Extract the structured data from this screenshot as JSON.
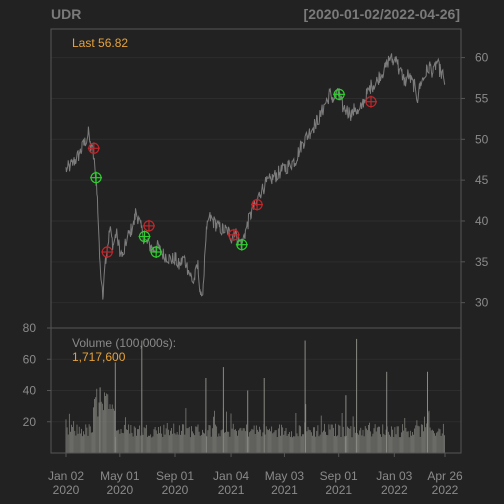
{
  "header": {
    "symbol": "UDR",
    "date_range": "[2020-01-02/2022-04-26]"
  },
  "chart_data": {
    "type": "line",
    "symbol": "UDR",
    "date_range": "[2020-01-02/2022-04-26]",
    "last_label": "Last 56.82",
    "price_axis": {
      "ticks": [
        30,
        35,
        40,
        45,
        50,
        55,
        60
      ],
      "ylim": [
        26.9,
        63.5
      ],
      "side": "right"
    },
    "x_axis": {
      "range": [
        "2020-01-02",
        "2022-04-26"
      ],
      "ticks": [
        {
          "date": "2020-01-02",
          "line1": "Jan 02",
          "line2": "2020"
        },
        {
          "date": "2020-05-01",
          "line1": "May 01",
          "line2": "2020"
        },
        {
          "date": "2020-09-01",
          "line1": "Sep 01",
          "line2": "2020"
        },
        {
          "date": "2021-01-04",
          "line1": "Jan 04",
          "line2": "2021"
        },
        {
          "date": "2021-05-03",
          "line1": "May 03",
          "line2": "2021"
        },
        {
          "date": "2021-09-01",
          "line1": "Sep 01",
          "line2": "2021"
        },
        {
          "date": "2022-01-03",
          "line1": "Jan 03",
          "line2": "2022"
        },
        {
          "date": "2022-04-26",
          "line1": "Apr 26",
          "line2": "2022"
        }
      ]
    },
    "price_series": [
      [
        "2020-01-02",
        46.3
      ],
      [
        "2020-01-15",
        46.9
      ],
      [
        "2020-02-01",
        48.2
      ],
      [
        "2020-02-12",
        49.5
      ],
      [
        "2020-02-21",
        50.7
      ],
      [
        "2020-02-26",
        49.0
      ],
      [
        "2020-03-02",
        48.5
      ],
      [
        "2020-03-06",
        46.5
      ],
      [
        "2020-03-11",
        44.0
      ],
      [
        "2020-03-16",
        37.0
      ],
      [
        "2020-03-20",
        33.0
      ],
      [
        "2020-03-24",
        30.5
      ],
      [
        "2020-03-27",
        34.0
      ],
      [
        "2020-04-02",
        36.5
      ],
      [
        "2020-04-09",
        39.0
      ],
      [
        "2020-04-16",
        37.0
      ],
      [
        "2020-04-23",
        38.5
      ],
      [
        "2020-05-01",
        36.5
      ],
      [
        "2020-05-08",
        35.5
      ],
      [
        "2020-05-15",
        37.5
      ],
      [
        "2020-05-22",
        38.5
      ],
      [
        "2020-06-01",
        39.5
      ],
      [
        "2020-06-05",
        41.0
      ],
      [
        "2020-06-10",
        40.5
      ],
      [
        "2020-06-18",
        39.0
      ],
      [
        "2020-06-26",
        37.5
      ],
      [
        "2020-07-06",
        37.0
      ],
      [
        "2020-07-15",
        36.5
      ],
      [
        "2020-07-24",
        36.8
      ],
      [
        "2020-08-03",
        36.0
      ],
      [
        "2020-08-14",
        35.7
      ],
      [
        "2020-08-24",
        35.2
      ],
      [
        "2020-09-01",
        35.5
      ],
      [
        "2020-09-10",
        34.5
      ],
      [
        "2020-09-21",
        35.5
      ],
      [
        "2020-10-01",
        34.0
      ],
      [
        "2020-10-12",
        32.5
      ],
      [
        "2020-10-22",
        34.5
      ],
      [
        "2020-10-30",
        30.0
      ],
      [
        "2020-11-04",
        33.0
      ],
      [
        "2020-11-09",
        38.0
      ],
      [
        "2020-11-16",
        40.5
      ],
      [
        "2020-11-24",
        40.0
      ],
      [
        "2020-12-02",
        39.5
      ],
      [
        "2020-12-14",
        39.0
      ],
      [
        "2020-12-28",
        38.8
      ],
      [
        "2021-01-05",
        38.0
      ],
      [
        "2021-01-12",
        38.8
      ],
      [
        "2021-01-20",
        37.6
      ],
      [
        "2021-01-28",
        37.2
      ],
      [
        "2021-02-04",
        38.5
      ],
      [
        "2021-02-12",
        40.0
      ],
      [
        "2021-02-22",
        41.5
      ],
      [
        "2021-03-01",
        42.0
      ],
      [
        "2021-03-10",
        43.5
      ],
      [
        "2021-03-22",
        44.5
      ],
      [
        "2021-04-01",
        45.0
      ],
      [
        "2021-04-12",
        45.5
      ],
      [
        "2021-04-23",
        46.0
      ],
      [
        "2021-05-05",
        46.5
      ],
      [
        "2021-05-17",
        47.0
      ],
      [
        "2021-05-28",
        47.5
      ],
      [
        "2021-06-07",
        49.0
      ],
      [
        "2021-06-18",
        50.0
      ],
      [
        "2021-06-30",
        51.0
      ],
      [
        "2021-07-12",
        52.0
      ],
      [
        "2021-07-23",
        53.0
      ],
      [
        "2021-08-03",
        54.5
      ],
      [
        "2021-08-12",
        55.5
      ],
      [
        "2021-08-20",
        55.0
      ],
      [
        "2021-09-01",
        55.5
      ],
      [
        "2021-09-10",
        54.0
      ],
      [
        "2021-09-20",
        53.5
      ],
      [
        "2021-10-01",
        53.0
      ],
      [
        "2021-10-08",
        54.0
      ],
      [
        "2021-10-15",
        53.0
      ],
      [
        "2021-10-25",
        54.5
      ],
      [
        "2021-11-03",
        55.5
      ],
      [
        "2021-11-12",
        56.5
      ],
      [
        "2021-11-24",
        57.0
      ],
      [
        "2021-12-03",
        58.0
      ],
      [
        "2021-12-13",
        58.5
      ],
      [
        "2021-12-23",
        60.0
      ],
      [
        "2022-01-03",
        59.5
      ],
      [
        "2022-01-07",
        60.5
      ],
      [
        "2022-01-13",
        58.5
      ],
      [
        "2022-01-20",
        58.0
      ],
      [
        "2022-01-27",
        57.0
      ],
      [
        "2022-02-03",
        58.0
      ],
      [
        "2022-02-10",
        57.0
      ],
      [
        "2022-02-17",
        56.5
      ],
      [
        "2022-02-24",
        55.0
      ],
      [
        "2022-03-03",
        57.0
      ],
      [
        "2022-03-10",
        57.5
      ],
      [
        "2022-03-17",
        58.5
      ],
      [
        "2022-03-24",
        59.0
      ],
      [
        "2022-03-31",
        58.0
      ],
      [
        "2022-04-07",
        59.5
      ],
      [
        "2022-04-14",
        58.5
      ],
      [
        "2022-04-21",
        57.8
      ],
      [
        "2022-04-26",
        56.82
      ]
    ],
    "buy_signals": [
      [
        "2020-03-09",
        45.3
      ],
      [
        "2020-06-25",
        38.1
      ],
      [
        "2020-07-21",
        36.2
      ],
      [
        "2021-01-28",
        37.1
      ],
      [
        "2021-09-02",
        55.5
      ]
    ],
    "sell_signals": [
      [
        "2020-03-04",
        48.9
      ],
      [
        "2020-04-03",
        36.2
      ],
      [
        "2020-07-05",
        39.4
      ],
      [
        "2021-01-10",
        38.3
      ],
      [
        "2021-03-03",
        42.0
      ],
      [
        "2021-11-12",
        54.6
      ]
    ],
    "volume_panel": {
      "label": "Volume (100,000s):",
      "last_value": "1,717,600",
      "units": "100,000s",
      "ticks": [
        20,
        40,
        60,
        80
      ],
      "ylim": [
        0,
        80
      ],
      "side": "left",
      "spikes": [
        [
          "2020-03-18",
          42
        ],
        [
          "2020-04-21",
          58
        ],
        [
          "2020-06-19",
          72
        ],
        [
          "2020-11-09",
          48
        ],
        [
          "2020-12-18",
          55
        ],
        [
          "2021-02-10",
          40
        ],
        [
          "2021-03-19",
          48
        ],
        [
          "2021-06-18",
          72
        ],
        [
          "2021-09-17",
          37
        ],
        [
          "2021-10-11",
          73
        ],
        [
          "2021-12-17",
          52
        ],
        [
          "2022-03-18",
          52
        ]
      ]
    },
    "colors": {
      "background": "#222222",
      "panel_border": "#555555",
      "gridline": "#2d2d2d",
      "price_line": "#7c7c7c",
      "volume_bar": "#8a8a84",
      "last_label": "#e6a23a",
      "buy": "#2ecc2e",
      "sell": "#c0262b",
      "axis_text": "#8a8a8a",
      "title_text": "#7a7a7a"
    },
    "grid": true,
    "legend": "top-left"
  }
}
